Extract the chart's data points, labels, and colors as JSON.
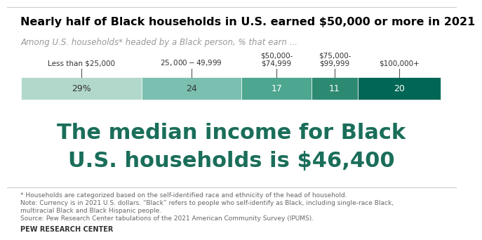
{
  "title": "Nearly half of Black households in U.S. earned $50,000 or more in 2021",
  "subtitle": "Among U.S. households* headed by a Black person, % that earn ...",
  "values": [
    29,
    24,
    17,
    11,
    20
  ],
  "labels": [
    "29%",
    "24",
    "17",
    "11",
    "20"
  ],
  "colors": [
    "#b2d8cc",
    "#7bbfb0",
    "#4da690",
    "#2d8a72",
    "#006655"
  ],
  "category_labels": [
    "Less than $25,000",
    "$25,000-$49,999",
    "$50,000-\n$74,999",
    "$75,000-\n$99,999",
    "$100,000+"
  ],
  "median_text_line1": "The median income for Black",
  "median_text_line2": "U.S. households is $46,400",
  "median_color": "#1a6e5a",
  "footnote1": "* Households are categorized based on the self-identified race and ethnicity of the head of household.",
  "footnote2": "Note: Currency is in 2021 U.S. dollars. “Black” refers to people who self-identify as Black, including single-race Black,",
  "footnote3": "multiracial Black and Black Hispanic people.",
  "footnote4": "Source: Pew Research Center tabulations of the 2021 American Community Survey (IPUMS).",
  "source_label": "PEW RESEARCH CENTER",
  "bg_color": "#ffffff",
  "bar_label_colors": [
    "#333333",
    "#333333",
    "#ffffff",
    "#ffffff",
    "#ffffff"
  ],
  "top_line_color": "#cccccc",
  "bottom_line_color": "#cccccc"
}
